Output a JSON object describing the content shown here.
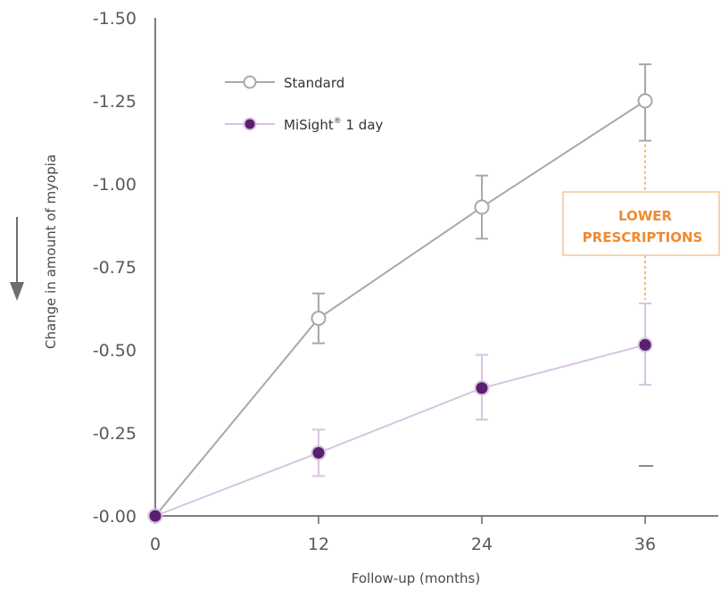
{
  "chart_data": {
    "type": "line",
    "x": [
      0,
      12,
      24,
      36
    ],
    "xticks": [
      "0",
      "12",
      "24",
      "36"
    ],
    "xlabel": "Follow-up (months)",
    "xlim": [
      0,
      40
    ],
    "yticks": [
      "-0.00",
      "-0.25",
      "-0.50",
      "-0.75",
      "-1.00",
      "-1.25",
      "-1.50"
    ],
    "ylabel": "Change in amount of myopia",
    "ylim": [
      0,
      1.5
    ],
    "series": [
      {
        "name": "Standard",
        "values": [
          0,
          0.595,
          0.93,
          1.25
        ],
        "err_low": [
          0,
          0.52,
          0.835,
          1.13
        ],
        "err_high": [
          0,
          0.67,
          1.025,
          1.36
        ]
      },
      {
        "name": "MiSight",
        "name_suffix": " 1 day",
        "values": [
          0,
          0.19,
          0.385,
          0.515
        ],
        "err_low": [
          0,
          0.12,
          0.29,
          0.395
        ],
        "err_high": [
          0,
          0.26,
          0.485,
          0.64
        ]
      }
    ],
    "annotation": {
      "line1": "LOWER",
      "line2": "PRESCRIPTIONS",
      "at_x": 36
    },
    "colors": {
      "standard": "#a8a8a8",
      "misight_line": "#d8c4df",
      "misight_marker": "#5a1f6e",
      "annotation": "#f08a2e",
      "axis": "#6e6e6e"
    },
    "legend_position": "top-left",
    "grid": false
  }
}
